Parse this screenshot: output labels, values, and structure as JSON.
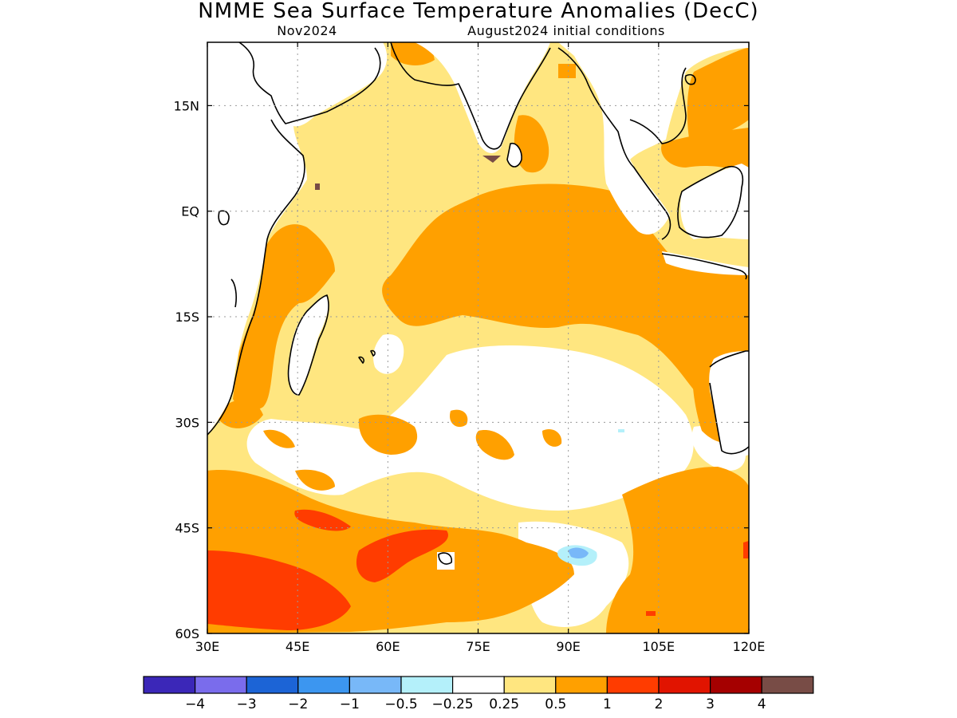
{
  "title": "NMME Sea Surface Temperature Anomalies (DecC)",
  "subtitle_left": "Nov2024",
  "subtitle_right": "August2024 initial conditions",
  "map": {
    "lon_range": [
      30,
      120
    ],
    "lat_range": [
      -60,
      24
    ],
    "lon_ticks": [
      {
        "value": 30,
        "label": "30E"
      },
      {
        "value": 45,
        "label": "45E"
      },
      {
        "value": 60,
        "label": "60E"
      },
      {
        "value": 75,
        "label": "75E"
      },
      {
        "value": 90,
        "label": "90E"
      },
      {
        "value": 105,
        "label": "105E"
      },
      {
        "value": 120,
        "label": "120E"
      }
    ],
    "lat_ticks": [
      {
        "value": 15,
        "label": "15N"
      },
      {
        "value": 0,
        "label": "EQ"
      },
      {
        "value": -15,
        "label": "15S"
      },
      {
        "value": -30,
        "label": "30S"
      },
      {
        "value": -45,
        "label": "45S"
      },
      {
        "value": -60,
        "label": "60S"
      }
    ],
    "grid": true
  },
  "colorbar": {
    "colors": [
      "#3b27b8",
      "#7a6cec",
      "#1c64d6",
      "#3c96f0",
      "#78b8f8",
      "#b4f0fa",
      "#ffffff",
      "#ffe680",
      "#ffa000",
      "#ff3c00",
      "#e11400",
      "#a50000",
      "#784c46"
    ],
    "labels": [
      "−4",
      "−3",
      "−2",
      "−1",
      "−0.5",
      "−0.25",
      "0.25",
      "0.5",
      "1",
      "2",
      "3",
      "4"
    ]
  },
  "legend_colors": {
    "white": "#ffffff",
    "light_yellow": "#ffe680",
    "orange": "#ffa000",
    "red_orange": "#ff3c00",
    "light_blue": "#b4f0fa",
    "blue": "#78b8f8",
    "brown": "#784c46"
  }
}
